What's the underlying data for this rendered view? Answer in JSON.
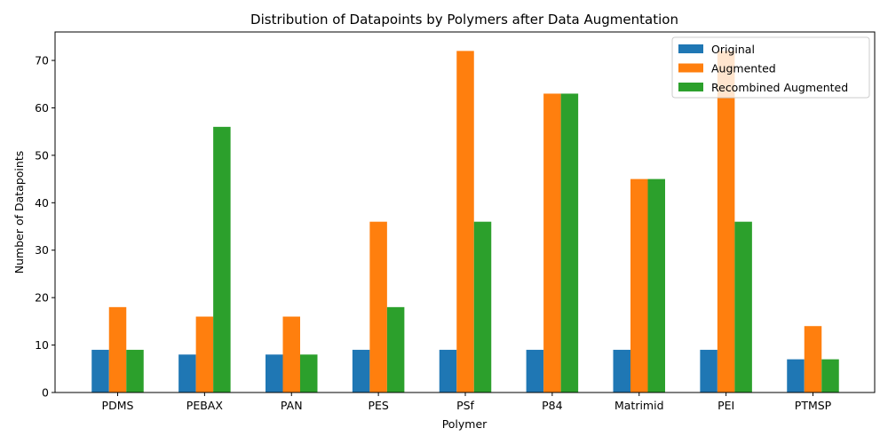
{
  "chart_data": {
    "type": "bar",
    "title": "Distribution of Datapoints by Polymers after Data Augmentation",
    "xlabel": "Polymer",
    "ylabel": "Number of Datapoints",
    "ylim": [
      0,
      76
    ],
    "yticks": [
      0,
      10,
      20,
      30,
      40,
      50,
      60,
      70
    ],
    "grid": false,
    "legend_position": "top-right",
    "categories": [
      "PDMS",
      "PEBAX",
      "PAN",
      "PES",
      "PSf",
      "P84",
      "Matrimid",
      "PEI",
      "PTMSP"
    ],
    "series": [
      {
        "name": "Original",
        "color": "#1f77b4",
        "values": [
          9,
          8,
          8,
          9,
          9,
          9,
          9,
          9,
          7
        ]
      },
      {
        "name": "Augmented",
        "color": "#ff7f0e",
        "values": [
          18,
          16,
          16,
          36,
          72,
          63,
          45,
          72,
          14
        ]
      },
      {
        "name": "Recombined Augmented",
        "color": "#2ca02c",
        "values": [
          9,
          56,
          8,
          18,
          36,
          63,
          45,
          36,
          7
        ]
      }
    ]
  }
}
